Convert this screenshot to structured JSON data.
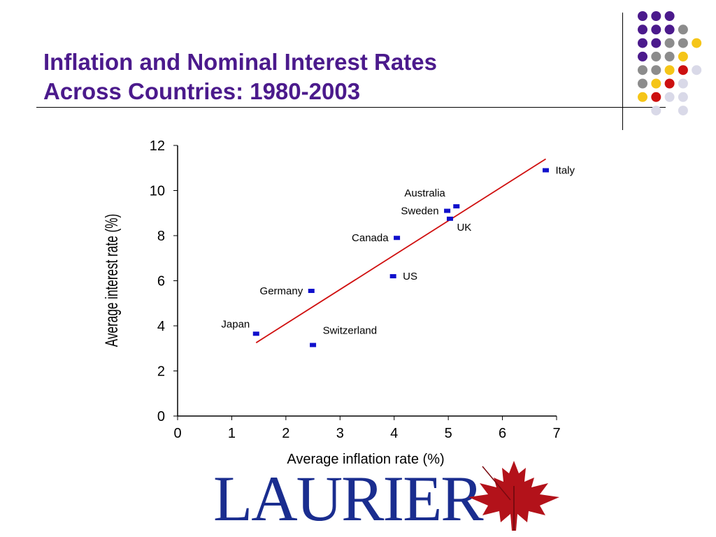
{
  "slide": {
    "title_line1": "Inflation and Nominal Interest Rates",
    "title_line2": "Across Countries: 1980-2003",
    "logo_text": "LAURIER",
    "logo_icon": "maple-leaf-icon"
  },
  "decor": {
    "colors": {
      "purple": "#4b1a8c",
      "gray": "#8c8c8c",
      "yellow": "#f5c518",
      "red": "#cc1010",
      "lavender": "#d9d9e8"
    },
    "dot_grid": [
      [
        "purple",
        "purple",
        "purple",
        null,
        null
      ],
      [
        "purple",
        "purple",
        "purple",
        "gray",
        null
      ],
      [
        "purple",
        "purple",
        "gray",
        "gray",
        "yellow"
      ],
      [
        "purple",
        "gray",
        "gray",
        "yellow",
        null
      ],
      [
        "gray",
        "gray",
        "yellow",
        "red",
        "lavender"
      ],
      [
        "gray",
        "yellow",
        "red",
        "lavender",
        null
      ],
      [
        "yellow",
        "red",
        "lavender",
        "lavender",
        null
      ],
      [
        null,
        "lavender",
        null,
        "lavender",
        null
      ]
    ]
  },
  "chart_data": {
    "type": "scatter",
    "xlabel": "Average inflation rate (%)",
    "ylabel": "Average interest rate (%)",
    "xlim": [
      0,
      7
    ],
    "ylim": [
      0,
      12
    ],
    "xticks": [
      "0",
      "1",
      "2",
      "3",
      "4",
      "5",
      "6",
      "7"
    ],
    "yticks": [
      "0",
      "2",
      "4",
      "6",
      "8",
      "10",
      "12"
    ],
    "grid": false,
    "point_color": "#1010cc",
    "line_color": "#d01010",
    "points": [
      {
        "label": "Italy",
        "x": 6.8,
        "y": 10.9,
        "label_pos": "right"
      },
      {
        "label": "Australia",
        "x": 5.15,
        "y": 9.3,
        "label_pos": "above-left"
      },
      {
        "label": "Sweden",
        "x": 4.98,
        "y": 9.1,
        "label_pos": "left"
      },
      {
        "label": "UK",
        "x": 5.03,
        "y": 8.75,
        "label_pos": "below-right"
      },
      {
        "label": "Canada",
        "x": 4.05,
        "y": 7.9,
        "label_pos": "left"
      },
      {
        "label": "US",
        "x": 3.98,
        "y": 6.2,
        "label_pos": "right"
      },
      {
        "label": "Germany",
        "x": 2.47,
        "y": 5.55,
        "label_pos": "left"
      },
      {
        "label": "Japan",
        "x": 1.45,
        "y": 3.65,
        "label_pos": "above-left"
      },
      {
        "label": "Switzerland",
        "x": 2.5,
        "y": 3.15,
        "label_pos": "above-right"
      }
    ],
    "fit_line": {
      "x": [
        1.45,
        6.8
      ],
      "y": [
        3.25,
        11.4
      ]
    }
  }
}
